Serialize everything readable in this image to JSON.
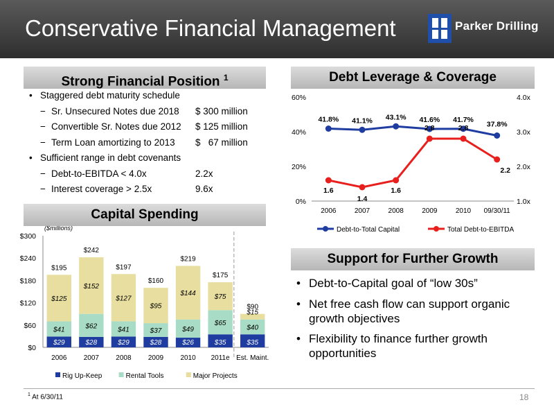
{
  "slide": {
    "title": "Conservative Financial Management",
    "brand": "Parker Drilling",
    "page_number": "18",
    "footnote_mark": "1",
    "footnote_text": "At 6/30/11"
  },
  "financial_position": {
    "heading": "Strong Financial Position",
    "heading_sup": "1",
    "items": [
      {
        "text": "Staggered debt maturity schedule",
        "value": "",
        "level": 1
      },
      {
        "text": "Sr. Unsecured Notes due 2018",
        "value": "$ 300 million",
        "level": 2
      },
      {
        "text": "Convertible Sr. Notes due 2012",
        "value": "$ 125 million",
        "level": 2
      },
      {
        "text": "Term Loan amortizing to 2013",
        "value": "$   67 million",
        "level": 2
      },
      {
        "text": "Sufficient range in debt covenants",
        "value": "",
        "level": 1
      },
      {
        "text": "Debt-to-EBITDA < 4.0x",
        "value": "2.2x",
        "level": 2
      },
      {
        "text": "Interest coverage > 2.5x",
        "value": "9.6x",
        "level": 2
      }
    ]
  },
  "growth": {
    "heading": "Support for Further Growth",
    "items": [
      "Debt-to-Capital goal of “low 30s”",
      "Net free cash flow can support organic growth objectives",
      "Flexibility to finance further growth opportunities"
    ]
  },
  "chart_data": [
    {
      "type": "bar",
      "title": "Capital Spending",
      "unit_note": "($millions)",
      "stacked": true,
      "categories": [
        "2006",
        "2007",
        "2008",
        "2009",
        "2010",
        "2011e",
        "Est. Maint."
      ],
      "y_ticks": [
        "$0",
        "$60",
        "$120",
        "$180",
        "$240",
        "$300"
      ],
      "ylim": [
        0,
        300
      ],
      "legend_position": "bottom",
      "series": [
        {
          "name": "Rig Up-Keep",
          "color": "#1f3da0",
          "values": [
            29,
            28,
            29,
            28,
            26,
            35,
            35
          ],
          "labels": [
            "$29",
            "$28",
            "$29",
            "$28",
            "$26",
            "$35",
            "$35"
          ]
        },
        {
          "name": "Rental Tools",
          "color": "#a8dcc6",
          "values": [
            41,
            62,
            41,
            37,
            49,
            65,
            40
          ],
          "labels": [
            "$41",
            "$62",
            "$41",
            "$37",
            "$49",
            "$65",
            "$40"
          ]
        },
        {
          "name": "Major Projects",
          "color": "#e8dea0",
          "values": [
            125,
            152,
            127,
            95,
            144,
            75,
            15
          ],
          "labels": [
            "$125",
            "$152",
            "$127",
            "$95",
            "$144",
            "$75",
            "$15"
          ]
        }
      ],
      "totals": [
        195,
        242,
        197,
        160,
        219,
        175,
        90
      ],
      "total_labels": [
        "$195",
        "$242",
        "$197",
        "$160",
        "$219",
        "$175",
        "$90"
      ]
    },
    {
      "type": "line",
      "title": "Debt Leverage & Coverage",
      "categories": [
        "2006",
        "2007",
        "2008",
        "2009",
        "2010",
        "09/30/11"
      ],
      "y_left_ticks": [
        "0%",
        "20%",
        "40%",
        "60%"
      ],
      "y_left_range": [
        0,
        60
      ],
      "y_right_ticks": [
        "1.0x",
        "2.0x",
        "3.0x",
        "4.0x"
      ],
      "y_right_range": [
        1.0,
        4.0
      ],
      "legend_position": "bottom",
      "series": [
        {
          "name": "Debt-to-Total Capital",
          "axis": "left",
          "color": "#1f3da0",
          "values": [
            41.8,
            41.1,
            43.1,
            41.6,
            41.7,
            37.8
          ],
          "labels": [
            "41.8%",
            "41.1%",
            "43.1%",
            "41.6%",
            "41.7%",
            "37.8%"
          ]
        },
        {
          "name": "Total Debt-to-EBITDA",
          "axis": "right",
          "color": "#e8201d",
          "values": [
            1.6,
            1.4,
            1.6,
            2.8,
            2.8,
            2.2
          ],
          "labels": [
            "1.6",
            "1.4",
            "1.6",
            "2.8",
            "2.8",
            "2.2"
          ]
        }
      ]
    }
  ]
}
